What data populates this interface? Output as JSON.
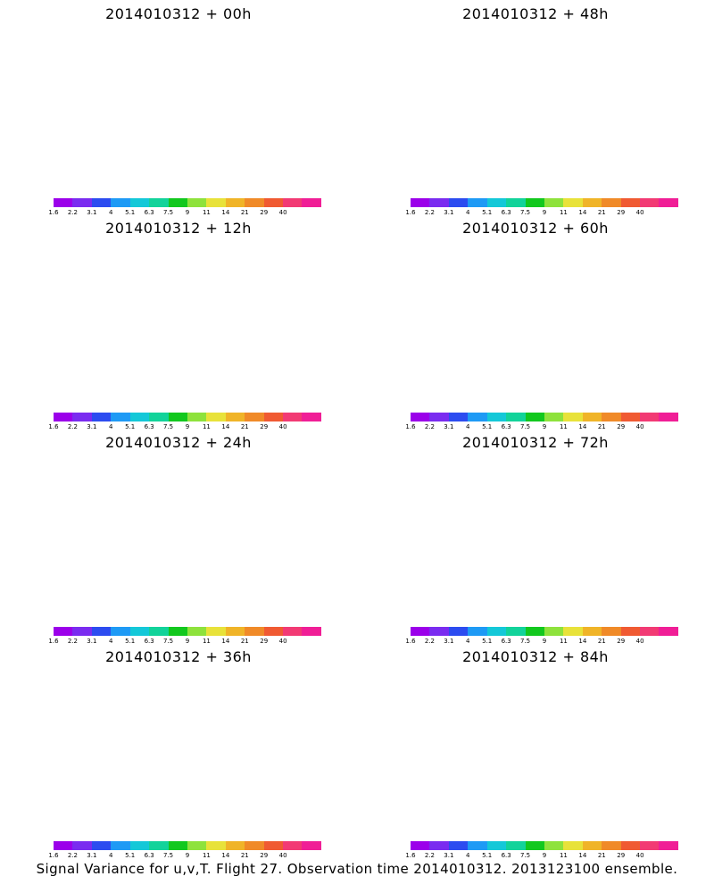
{
  "colors": [
    "#9b00ea",
    "#7a2cf0",
    "#2c4cf0",
    "#1e9af5",
    "#14c8d8",
    "#12d39a",
    "#12c81e",
    "#8ee23c",
    "#e8e23a",
    "#f0b428",
    "#f08a28",
    "#f05a32",
    "#f23a74",
    "#f01e96"
  ],
  "tick_labels": [
    "1.6",
    "2.2",
    "3.1",
    "4",
    "5.1",
    "6.3",
    "7.5",
    "9",
    "11",
    "14",
    "21",
    "29",
    "40"
  ],
  "footer": "Signal Variance for u,v,T. Flight 27. Observation time 2014010312. 2013123100 ensemble.",
  "panels": [
    {
      "title": "2014010312 + 00h",
      "intensity": 0.15
    },
    {
      "title": "2014010312 + 48h",
      "intensity": 0.62
    },
    {
      "title": "2014010312 + 12h",
      "intensity": 0.32
    },
    {
      "title": "2014010312 + 60h",
      "intensity": 0.7
    },
    {
      "title": "2014010312 + 24h",
      "intensity": 0.45
    },
    {
      "title": "2014010312 + 72h",
      "intensity": 0.78
    },
    {
      "title": "2014010312 + 36h",
      "intensity": 0.55
    },
    {
      "title": "2014010312 + 84h",
      "intensity": 0.85
    }
  ]
}
